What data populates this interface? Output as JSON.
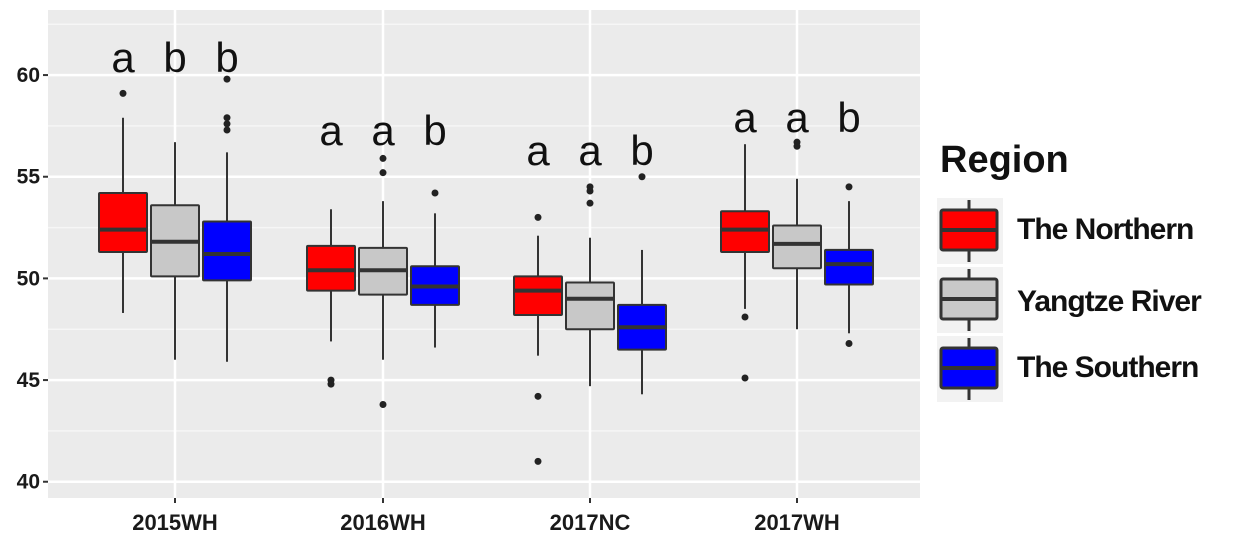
{
  "chart_data": {
    "type": "boxplot",
    "categories": [
      "2015WH",
      "2016WH",
      "2017NC",
      "2017WH"
    ],
    "ylim": [
      39.2,
      63.2
    ],
    "yticks": [
      40,
      45,
      50,
      55,
      60
    ],
    "ytick_labels": [
      "40",
      "45",
      "50",
      "55",
      "60"
    ],
    "grid": true,
    "legend": {
      "title": "Region",
      "position": "right",
      "entries": [
        "The Northern",
        "Yangtze River",
        "The Southern"
      ]
    },
    "series": [
      {
        "name": "The Northern",
        "color": "#ff0000",
        "boxes": [
          {
            "whisker_low": 48.3,
            "q1": 51.3,
            "median": 52.4,
            "q3": 54.2,
            "whisker_high": 57.9,
            "outliers": [
              59.1
            ]
          },
          {
            "whisker_low": 46.9,
            "q1": 49.4,
            "median": 50.4,
            "q3": 51.6,
            "whisker_high": 53.4,
            "outliers": [
              45.0,
              44.8
            ]
          },
          {
            "whisker_low": 46.2,
            "q1": 48.2,
            "median": 49.4,
            "q3": 50.1,
            "whisker_high": 52.1,
            "outliers": [
              53.0,
              44.2,
              41.0
            ]
          },
          {
            "whisker_low": 48.5,
            "q1": 51.3,
            "median": 52.4,
            "q3": 53.3,
            "whisker_high": 56.6,
            "outliers": [
              48.1,
              45.1
            ]
          }
        ]
      },
      {
        "name": "Yangtze River",
        "color": "#c8c8c8",
        "boxes": [
          {
            "whisker_low": 46.0,
            "q1": 50.1,
            "median": 51.8,
            "q3": 53.6,
            "whisker_high": 56.7,
            "outliers": []
          },
          {
            "whisker_low": 46.0,
            "q1": 49.2,
            "median": 50.4,
            "q3": 51.5,
            "whisker_high": 53.8,
            "outliers": [
              55.9,
              55.2,
              43.8
            ]
          },
          {
            "whisker_low": 44.7,
            "q1": 47.5,
            "median": 49.0,
            "q3": 49.8,
            "whisker_high": 52.0,
            "outliers": [
              54.5,
              54.3,
              53.7
            ]
          },
          {
            "whisker_low": 47.5,
            "q1": 50.5,
            "median": 51.7,
            "q3": 52.6,
            "whisker_high": 54.9,
            "outliers": [
              56.7,
              56.5
            ]
          }
        ]
      },
      {
        "name": "The Southern",
        "color": "#0000ff",
        "boxes": [
          {
            "whisker_low": 45.9,
            "q1": 49.9,
            "median": 51.2,
            "q3": 52.8,
            "whisker_high": 56.2,
            "outliers": [
              59.8,
              57.9,
              57.6,
              57.3
            ]
          },
          {
            "whisker_low": 46.6,
            "q1": 48.7,
            "median": 49.6,
            "q3": 50.6,
            "whisker_high": 53.2,
            "outliers": [
              54.2
            ]
          },
          {
            "whisker_low": 44.3,
            "q1": 46.5,
            "median": 47.6,
            "q3": 48.7,
            "whisker_high": 51.4,
            "outliers": [
              55.0
            ]
          },
          {
            "whisker_low": 47.3,
            "q1": 49.7,
            "median": 50.7,
            "q3": 51.4,
            "whisker_high": 53.8,
            "outliers": [
              54.5,
              46.8
            ]
          }
        ]
      }
    ],
    "annotations": [
      [
        "a",
        "b",
        "b"
      ],
      [
        "a",
        "a",
        "b"
      ],
      [
        "a",
        "a",
        "b"
      ],
      [
        "a",
        "a",
        "b"
      ]
    ]
  }
}
